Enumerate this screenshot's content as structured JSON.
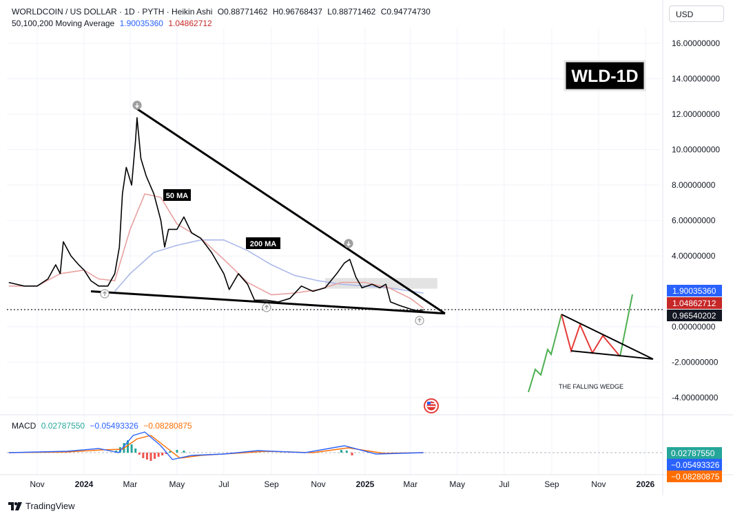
{
  "header": {
    "symbol": "WORLDCOIN / US DOLLAR · 1D · PYTH · Heikin Ashi",
    "o_label": "O",
    "o_value": "0.88771462",
    "h_label": "H",
    "h_value": "0.96768437",
    "l_label": "L",
    "l_value": "0.88771462",
    "c_label": "C",
    "c_value": "0.94774730",
    "ma_label": "50,100,200 Moving Average",
    "ma_value_1": "1.90035360",
    "ma_value_2": "1.04862712"
  },
  "currency_button": "USD",
  "badge": "WLD-1D",
  "annotations": {
    "ma50": "50 MA",
    "ma200": "200 MA",
    "wedge": "THE FALLING WEDGE"
  },
  "macd": {
    "label": "MACD",
    "v1": "0.02787550",
    "v2": "−0.05493326",
    "v3": "−0.08280875"
  },
  "branding": "TradingView",
  "colors": {
    "price": "#000000",
    "ma_red": "#e8a0a0",
    "ma_blue": "#a9b8ea",
    "macd_line": "#2962ff",
    "signal_line": "#ff6d00",
    "hist_pos": "#26a69a",
    "hist_neg": "#ef5350",
    "up_arrow": "#4caf50",
    "down_arrow": "#e53935"
  },
  "chart_data": {
    "type": "line",
    "title": "WORLDCOIN / US DOLLAR · 1D · PYTH · Heikin Ashi",
    "ylim": [
      -4.5,
      17.7
    ],
    "y_ticks": [
      "16.00000000",
      "14.00000000",
      "12.00000000",
      "10.00000000",
      "8.00000000",
      "6.00000000",
      "4.00000000",
      "0.00000000",
      "-2.00000000",
      "-4.00000000"
    ],
    "y_tick_values": [
      16,
      14,
      12,
      10,
      8,
      6,
      4,
      0,
      -2,
      -4
    ],
    "x_ticks": [
      "Nov",
      "2024",
      "Mar",
      "May",
      "Jul",
      "Sep",
      "Nov",
      "2025",
      "Mar",
      "May",
      "Jul",
      "Sep",
      "Nov",
      "2026"
    ],
    "x_tick_dates": [
      "2023-11-01",
      "2024-01-01",
      "2024-03-01",
      "2024-05-01",
      "2024-07-01",
      "2024-09-01",
      "2024-11-01",
      "2025-01-01",
      "2025-03-01",
      "2025-05-01",
      "2025-07-01",
      "2025-09-01",
      "2025-11-01",
      "2026-01-01"
    ],
    "price_labels": [
      {
        "value": "1.90035360",
        "color": "#2962ff"
      },
      {
        "value": "1.04862712",
        "color": "#c62828"
      },
      {
        "value": "0.96540202",
        "color": "#131722"
      }
    ],
    "current_price": 0.965,
    "series": [
      {
        "name": "Price",
        "points": [
          [
            "2023-09-25",
            2.5
          ],
          [
            "2023-10-15",
            2.3
          ],
          [
            "2023-11-01",
            2.3
          ],
          [
            "2023-11-15",
            2.7
          ],
          [
            "2023-11-25",
            3.5
          ],
          [
            "2023-12-01",
            3.0
          ],
          [
            "2023-12-05",
            4.8
          ],
          [
            "2023-12-15",
            4.0
          ],
          [
            "2023-12-25",
            3.5
          ],
          [
            "2024-01-01",
            3.2
          ],
          [
            "2024-01-10",
            2.6
          ],
          [
            "2024-01-20",
            2.3
          ],
          [
            "2024-02-01",
            2.3
          ],
          [
            "2024-02-10",
            3.0
          ],
          [
            "2024-02-16",
            4.5
          ],
          [
            "2024-02-20",
            7.5
          ],
          [
            "2024-02-25",
            9.0
          ],
          [
            "2024-03-03",
            8.0
          ],
          [
            "2024-03-08",
            10.5
          ],
          [
            "2024-03-10",
            11.8
          ],
          [
            "2024-03-15",
            9.5
          ],
          [
            "2024-03-22",
            8.5
          ],
          [
            "2024-04-01",
            7.5
          ],
          [
            "2024-04-10",
            6.0
          ],
          [
            "2024-04-15",
            4.5
          ],
          [
            "2024-04-20",
            5.5
          ],
          [
            "2024-05-01",
            5.5
          ],
          [
            "2024-05-10",
            6.2
          ],
          [
            "2024-05-20",
            5.3
          ],
          [
            "2024-06-01",
            5.0
          ],
          [
            "2024-06-15",
            4.2
          ],
          [
            "2024-07-01",
            3.0
          ],
          [
            "2024-07-08",
            2.1
          ],
          [
            "2024-07-20",
            3.0
          ],
          [
            "2024-08-01",
            2.4
          ],
          [
            "2024-08-10",
            1.5
          ],
          [
            "2024-08-25",
            1.5
          ],
          [
            "2024-09-10",
            1.4
          ],
          [
            "2024-09-25",
            1.6
          ],
          [
            "2024-10-10",
            2.3
          ],
          [
            "2024-10-25",
            2.0
          ],
          [
            "2024-11-10",
            2.2
          ],
          [
            "2024-11-25",
            3.0
          ],
          [
            "2024-12-05",
            3.6
          ],
          [
            "2024-12-12",
            3.8
          ],
          [
            "2024-12-20",
            2.8
          ],
          [
            "2024-12-28",
            2.2
          ],
          [
            "2025-01-10",
            2.4
          ],
          [
            "2025-01-20",
            2.2
          ],
          [
            "2025-01-28",
            2.4
          ],
          [
            "2025-02-03",
            1.4
          ],
          [
            "2025-02-15",
            1.2
          ],
          [
            "2025-03-01",
            1.0
          ],
          [
            "2025-03-10",
            0.9
          ],
          [
            "2025-03-18",
            0.95
          ]
        ]
      },
      {
        "name": "50 MA",
        "points": [
          [
            "2023-09-25",
            2.3
          ],
          [
            "2023-11-01",
            2.3
          ],
          [
            "2023-12-01",
            3.0
          ],
          [
            "2024-01-01",
            3.2
          ],
          [
            "2024-01-20",
            2.7
          ],
          [
            "2024-02-10",
            2.6
          ],
          [
            "2024-03-01",
            5.5
          ],
          [
            "2024-03-20",
            7.5
          ],
          [
            "2024-04-10",
            7.3
          ],
          [
            "2024-05-01",
            5.8
          ],
          [
            "2024-06-01",
            5.0
          ],
          [
            "2024-07-01",
            3.8
          ],
          [
            "2024-08-01",
            2.5
          ],
          [
            "2024-09-01",
            1.8
          ],
          [
            "2024-10-01",
            1.9
          ],
          [
            "2024-11-01",
            2.1
          ],
          [
            "2024-12-01",
            2.5
          ],
          [
            "2025-01-01",
            2.5
          ],
          [
            "2025-02-01",
            2.2
          ],
          [
            "2025-03-01",
            1.6
          ],
          [
            "2025-03-18",
            1.05
          ]
        ]
      },
      {
        "name": "200 MA",
        "points": [
          [
            "2024-02-10",
            2.0
          ],
          [
            "2024-03-01",
            3.0
          ],
          [
            "2024-04-01",
            4.2
          ],
          [
            "2024-05-01",
            4.6
          ],
          [
            "2024-06-01",
            4.9
          ],
          [
            "2024-07-01",
            4.9
          ],
          [
            "2024-08-01",
            4.3
          ],
          [
            "2024-09-01",
            3.5
          ],
          [
            "2024-10-01",
            2.9
          ],
          [
            "2024-11-01",
            2.6
          ],
          [
            "2024-12-01",
            2.4
          ],
          [
            "2025-01-01",
            2.3
          ],
          [
            "2025-02-01",
            2.2
          ],
          [
            "2025-03-18",
            1.9
          ]
        ]
      }
    ],
    "trendlines": [
      {
        "name": "Wedge upper",
        "from": [
          "2024-03-10",
          12.3
        ],
        "to": [
          "2025-04-15",
          0.75
        ]
      },
      {
        "name": "Wedge lower",
        "from": [
          "2024-01-10",
          2.0
        ],
        "to": [
          "2025-04-15",
          0.75
        ]
      }
    ]
  }
}
